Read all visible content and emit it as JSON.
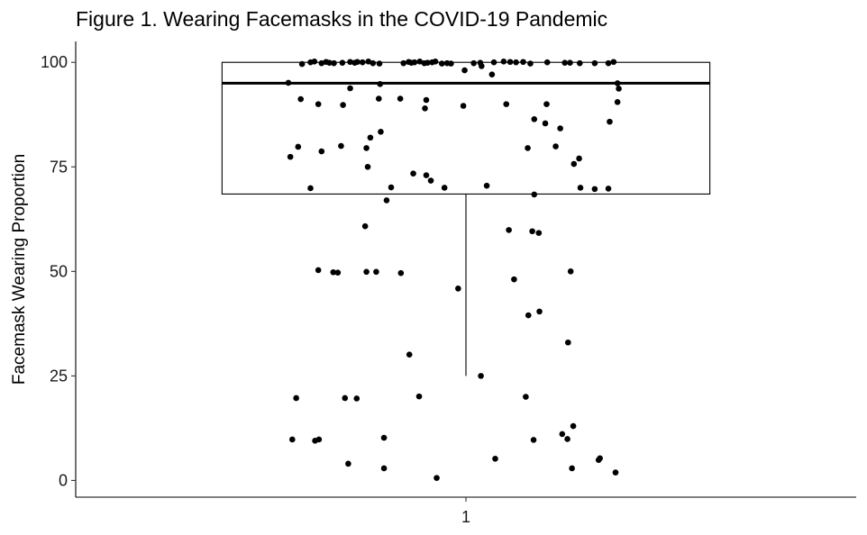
{
  "chart_data": {
    "type": "boxplot",
    "title": "Figure 1. Wearing Facemasks in the COVID-19 Pandemic",
    "xlabel": "",
    "ylabel": "Facemask Wearing Proportion",
    "categories": [
      "1"
    ],
    "ylim": [
      -4,
      105
    ],
    "y_ticks": [
      0,
      25,
      50,
      75,
      100
    ],
    "grid": false,
    "legend": "none",
    "box": {
      "q1": 68.5,
      "median": 95,
      "q3": 100,
      "whisker_low": 25,
      "whisker_high": 100
    },
    "points": [
      {
        "x": 0.727,
        "y": 95.1
      },
      {
        "x": 0.748,
        "y": 99.6
      },
      {
        "x": 0.761,
        "y": 100.0
      },
      {
        "x": 0.767,
        "y": 100.2
      },
      {
        "x": 0.778,
        "y": 99.8
      },
      {
        "x": 0.785,
        "y": 100.1
      },
      {
        "x": 0.79,
        "y": 99.9
      },
      {
        "x": 0.797,
        "y": 99.8
      },
      {
        "x": 0.81,
        "y": 99.9
      },
      {
        "x": 0.822,
        "y": 100.1
      },
      {
        "x": 0.829,
        "y": 99.9
      },
      {
        "x": 0.833,
        "y": 100.1
      },
      {
        "x": 0.841,
        "y": 100.0
      },
      {
        "x": 0.85,
        "y": 100.2
      },
      {
        "x": 0.857,
        "y": 99.8
      },
      {
        "x": 0.867,
        "y": 99.7
      },
      {
        "x": 0.904,
        "y": 99.8
      },
      {
        "x": 0.912,
        "y": 100.1
      },
      {
        "x": 0.916,
        "y": 99.9
      },
      {
        "x": 0.921,
        "y": 100.0
      },
      {
        "x": 0.929,
        "y": 100.2
      },
      {
        "x": 0.936,
        "y": 99.8
      },
      {
        "x": 0.941,
        "y": 99.9
      },
      {
        "x": 0.948,
        "y": 100.0
      },
      {
        "x": 0.953,
        "y": 100.2
      },
      {
        "x": 0.963,
        "y": 99.7
      },
      {
        "x": 0.971,
        "y": 99.8
      },
      {
        "x": 0.977,
        "y": 99.7
      },
      {
        "x": 0.998,
        "y": 98.1
      },
      {
        "x": 1.012,
        "y": 99.8
      },
      {
        "x": 1.022,
        "y": 99.9
      },
      {
        "x": 1.043,
        "y": 100.0
      },
      {
        "x": 1.058,
        "y": 100.2
      },
      {
        "x": 1.068,
        "y": 100.1
      },
      {
        "x": 1.077,
        "y": 100.0
      },
      {
        "x": 1.088,
        "y": 100.1
      },
      {
        "x": 1.099,
        "y": 99.7
      },
      {
        "x": 1.125,
        "y": 100.0
      },
      {
        "x": 1.152,
        "y": 99.9
      },
      {
        "x": 1.16,
        "y": 99.9
      },
      {
        "x": 1.175,
        "y": 99.8
      },
      {
        "x": 1.198,
        "y": 99.8
      },
      {
        "x": 1.219,
        "y": 99.8
      },
      {
        "x": 1.227,
        "y": 100.1
      },
      {
        "x": 1.04,
        "y": 97.1
      },
      {
        "x": 0.746,
        "y": 91.2
      },
      {
        "x": 0.773,
        "y": 90.0
      },
      {
        "x": 0.811,
        "y": 89.8
      },
      {
        "x": 0.822,
        "y": 93.8
      },
      {
        "x": 0.866,
        "y": 91.3
      },
      {
        "x": 0.899,
        "y": 91.3
      },
      {
        "x": 0.937,
        "y": 89.0
      },
      {
        "x": 0.939,
        "y": 91.0
      },
      {
        "x": 0.996,
        "y": 89.6
      },
      {
        "x": 1.062,
        "y": 90.0
      },
      {
        "x": 1.124,
        "y": 90.0
      },
      {
        "x": 1.233,
        "y": 95.0
      },
      {
        "x": 1.235,
        "y": 93.7
      },
      {
        "x": 1.233,
        "y": 90.5
      },
      {
        "x": 0.868,
        "y": 94.8
      },
      {
        "x": 1.024,
        "y": 99.1
      },
      {
        "x": 1.221,
        "y": 85.8
      },
      {
        "x": 1.145,
        "y": 84.2
      },
      {
        "x": 1.122,
        "y": 85.4
      },
      {
        "x": 1.095,
        "y": 79.5
      },
      {
        "x": 0.742,
        "y": 79.8
      },
      {
        "x": 0.778,
        "y": 78.7
      },
      {
        "x": 0.73,
        "y": 77.4
      },
      {
        "x": 0.808,
        "y": 80.0
      },
      {
        "x": 0.847,
        "y": 79.5
      },
      {
        "x": 0.853,
        "y": 82.0
      },
      {
        "x": 0.869,
        "y": 83.4
      },
      {
        "x": 0.849,
        "y": 75.0
      },
      {
        "x": 1.105,
        "y": 86.4
      },
      {
        "x": 1.138,
        "y": 79.9
      },
      {
        "x": 1.166,
        "y": 75.7
      },
      {
        "x": 1.174,
        "y": 77.0
      },
      {
        "x": 0.761,
        "y": 69.9
      },
      {
        "x": 0.885,
        "y": 70.1
      },
      {
        "x": 0.919,
        "y": 73.4
      },
      {
        "x": 0.939,
        "y": 73.0
      },
      {
        "x": 0.946,
        "y": 71.7
      },
      {
        "x": 0.967,
        "y": 70.0
      },
      {
        "x": 1.032,
        "y": 70.5
      },
      {
        "x": 1.176,
        "y": 70.0
      },
      {
        "x": 1.198,
        "y": 69.7
      },
      {
        "x": 1.219,
        "y": 69.8
      },
      {
        "x": 1.105,
        "y": 68.4
      },
      {
        "x": 0.878,
        "y": 67.0
      },
      {
        "x": 0.845,
        "y": 60.8
      },
      {
        "x": 1.066,
        "y": 59.9
      },
      {
        "x": 1.102,
        "y": 59.6
      },
      {
        "x": 1.112,
        "y": 59.2
      },
      {
        "x": 0.773,
        "y": 50.3
      },
      {
        "x": 0.796,
        "y": 49.8
      },
      {
        "x": 0.803,
        "y": 49.7
      },
      {
        "x": 0.847,
        "y": 49.9
      },
      {
        "x": 0.862,
        "y": 49.9
      },
      {
        "x": 0.9,
        "y": 49.6
      },
      {
        "x": 0.988,
        "y": 45.9
      },
      {
        "x": 1.074,
        "y": 48.1
      },
      {
        "x": 1.096,
        "y": 39.5
      },
      {
        "x": 1.113,
        "y": 40.4
      },
      {
        "x": 1.161,
        "y": 50.0
      },
      {
        "x": 0.913,
        "y": 30.1
      },
      {
        "x": 1.157,
        "y": 33.0
      },
      {
        "x": 0.739,
        "y": 19.7
      },
      {
        "x": 0.814,
        "y": 19.7
      },
      {
        "x": 0.832,
        "y": 19.6
      },
      {
        "x": 0.928,
        "y": 20.1
      },
      {
        "x": 1.023,
        "y": 25.0
      },
      {
        "x": 1.092,
        "y": 20.0
      },
      {
        "x": 0.733,
        "y": 9.8
      },
      {
        "x": 0.768,
        "y": 9.5
      },
      {
        "x": 0.774,
        "y": 9.8
      },
      {
        "x": 0.819,
        "y": 4.0
      },
      {
        "x": 0.874,
        "y": 10.2
      },
      {
        "x": 0.874,
        "y": 2.9
      },
      {
        "x": 0.955,
        "y": 0.6
      },
      {
        "x": 1.045,
        "y": 5.2
      },
      {
        "x": 1.104,
        "y": 9.7
      },
      {
        "x": 1.156,
        "y": 9.9
      },
      {
        "x": 1.148,
        "y": 11.1
      },
      {
        "x": 1.165,
        "y": 13.0
      },
      {
        "x": 1.163,
        "y": 2.9
      },
      {
        "x": 1.204,
        "y": 4.9
      },
      {
        "x": 1.206,
        "y": 5.3
      },
      {
        "x": 1.23,
        "y": 1.9
      }
    ]
  }
}
